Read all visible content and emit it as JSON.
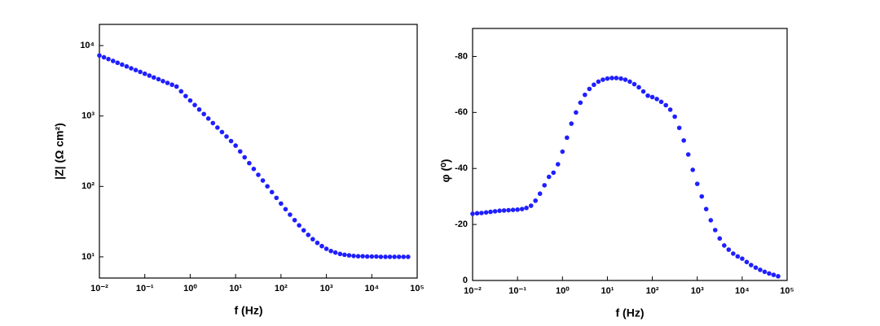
{
  "chart_data": [
    {
      "type": "scatter",
      "xlabel": "f (Hz)",
      "ylabel": "|Z| (Ω cm²)",
      "xscale": "log",
      "yscale": "log",
      "color": "#1f1fff",
      "xlim": [
        0.01,
        100000
      ],
      "ylim": [
        5,
        20000
      ],
      "xticks": [
        {
          "value": 0.01,
          "label": "10⁻²"
        },
        {
          "value": 0.1,
          "label": "10⁻¹"
        },
        {
          "value": 1,
          "label": "10⁰"
        },
        {
          "value": 10,
          "label": "10¹"
        },
        {
          "value": 100,
          "label": "10²"
        },
        {
          "value": 1000,
          "label": "10³"
        },
        {
          "value": 10000,
          "label": "10⁴"
        },
        {
          "value": 100000,
          "label": "10⁵"
        }
      ],
      "yticks": [
        {
          "value": 10,
          "label": "10¹"
        },
        {
          "value": 100,
          "label": "10²"
        },
        {
          "value": 1000,
          "label": "10³"
        },
        {
          "value": 10000,
          "label": "10⁴"
        }
      ],
      "x": [
        0.01,
        0.0126,
        0.0158,
        0.02,
        0.0251,
        0.0316,
        0.0398,
        0.0501,
        0.0631,
        0.0794,
        0.1,
        0.126,
        0.158,
        0.2,
        0.251,
        0.316,
        0.398,
        0.501,
        0.631,
        0.794,
        1,
        1.26,
        1.58,
        2,
        2.51,
        3.16,
        3.98,
        5.01,
        6.31,
        7.94,
        10,
        12.6,
        15.8,
        20,
        25.1,
        31.6,
        39.8,
        50.1,
        63.1,
        79.4,
        100,
        126,
        158,
        200,
        251,
        316,
        398,
        501,
        631,
        794,
        1000,
        1260,
        1580,
        2000,
        2510,
        3160,
        3980,
        5010,
        6310,
        7940,
        10000,
        12600,
        15800,
        20000,
        25100,
        31600,
        39800,
        50100,
        63100
      ],
      "values": [
        7240,
        6820,
        6430,
        6050,
        5700,
        5370,
        5060,
        4760,
        4490,
        4230,
        3980,
        3750,
        3530,
        3330,
        3130,
        2950,
        2780,
        2620,
        2240,
        1920,
        1660,
        1432,
        1236,
        1067,
        920,
        794,
        685,
        592,
        511,
        441,
        380,
        314,
        259,
        214,
        177,
        146,
        121.4,
        100.3,
        83,
        68.8,
        57.1,
        47.5,
        39.7,
        33.2,
        28,
        23.8,
        20.5,
        17.8,
        15.8,
        14.2,
        13,
        12.1,
        11.5,
        11,
        10.7,
        10.5,
        10.3,
        10.2,
        10.2,
        10.1,
        10.1,
        10.1,
        10,
        10,
        10,
        10,
        10,
        10,
        10
      ]
    },
    {
      "type": "scatter",
      "xlabel": "f (Hz)",
      "ylabel": "φ (⁰)",
      "xscale": "log",
      "yscale": "linear",
      "color": "#1f1fff",
      "xlim": [
        0.01,
        100000
      ],
      "ylim": [
        0,
        -90
      ],
      "xticks": [
        {
          "value": 0.01,
          "label": "10⁻²"
        },
        {
          "value": 0.1,
          "label": "10⁻¹"
        },
        {
          "value": 1,
          "label": "10⁰"
        },
        {
          "value": 10,
          "label": "10¹"
        },
        {
          "value": 100,
          "label": "10²"
        },
        {
          "value": 1000,
          "label": "10³"
        },
        {
          "value": 10000,
          "label": "10⁴"
        },
        {
          "value": 100000,
          "label": "10⁵"
        }
      ],
      "yticks": [
        0,
        -20,
        -40,
        -60,
        -80
      ],
      "x": [
        0.01,
        0.0126,
        0.0158,
        0.02,
        0.0251,
        0.0316,
        0.0398,
        0.0501,
        0.0631,
        0.0794,
        0.1,
        0.126,
        0.158,
        0.2,
        0.251,
        0.316,
        0.398,
        0.501,
        0.631,
        0.794,
        1,
        1.26,
        1.58,
        2,
        2.51,
        3.16,
        3.98,
        5.01,
        6.31,
        7.94,
        10,
        12.6,
        15.8,
        20,
        25.1,
        31.6,
        39.8,
        50.1,
        63.1,
        79.4,
        100,
        126,
        158,
        200,
        251,
        316,
        398,
        501,
        631,
        794,
        1000,
        1260,
        1580,
        2000,
        2510,
        3160,
        3980,
        5010,
        6310,
        7940,
        10000,
        12600,
        15800,
        20000,
        25100,
        31600,
        39800,
        50100,
        63100
      ],
      "values": [
        -23.8,
        -24,
        -24.1,
        -24.3,
        -24.5,
        -24.7,
        -24.9,
        -25,
        -25.1,
        -25.2,
        -25.3,
        -25.5,
        -25.9,
        -26.7,
        -28.5,
        -31,
        -34,
        -37,
        -38.5,
        -41.5,
        -46,
        -51,
        -56,
        -60,
        -63.5,
        -66.3,
        -68.4,
        -69.9,
        -71,
        -71.7,
        -72.1,
        -72.3,
        -72.3,
        -72.1,
        -71.7,
        -71,
        -70.1,
        -69,
        -67.5,
        -66,
        -65.5,
        -64.8,
        -63.8,
        -62.6,
        -61,
        -58.5,
        -54.5,
        -50,
        -45,
        -39.5,
        -34.5,
        -30,
        -25.5,
        -21.5,
        -18,
        -15,
        -12.5,
        -11,
        -9.6,
        -8.6,
        -7.8,
        -6.6,
        -5.5,
        -4.6,
        -3.8,
        -3.1,
        -2.5,
        -2,
        -1.5
      ]
    }
  ]
}
